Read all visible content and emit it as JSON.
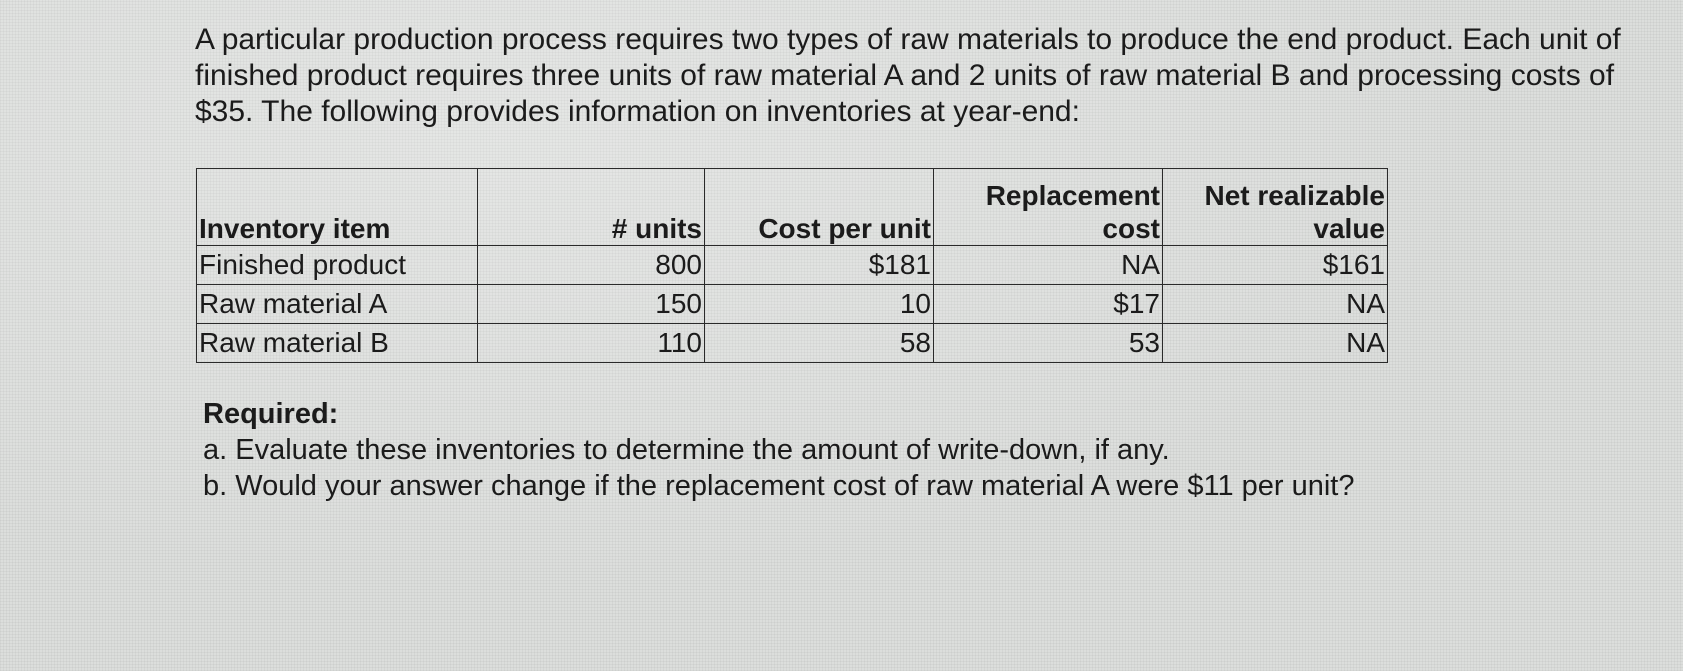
{
  "intro": "A particular production process requires two types of raw materials to produce the end product. Each unit of finished product requires three units of raw material A and 2 units of raw material B and processing costs of $35. The following provides information on inventories at year-end:",
  "table": {
    "headers": {
      "item": "Inventory item",
      "units": "# units",
      "cost": "Cost per unit",
      "replacement_line1": "Replacement",
      "replacement_line2": "cost",
      "nrv_line1": "Net realizable",
      "nrv_line2": "value"
    },
    "rows": [
      {
        "item": "Finished product",
        "units": "800",
        "cost": "$181",
        "replacement": "NA",
        "nrv": "$161"
      },
      {
        "item": "Raw material A",
        "units": "150",
        "cost": "10",
        "replacement": "$17",
        "nrv": "NA"
      },
      {
        "item": "Raw material B",
        "units": "110",
        "cost": "58",
        "replacement": "53",
        "nrv": "NA"
      }
    ]
  },
  "required": {
    "title": "Required:",
    "items": [
      "a. Evaluate these inventories to determine the amount of write-down, if any.",
      "b. Would your answer change if the replacement cost of raw material A were $11 per unit?"
    ]
  }
}
